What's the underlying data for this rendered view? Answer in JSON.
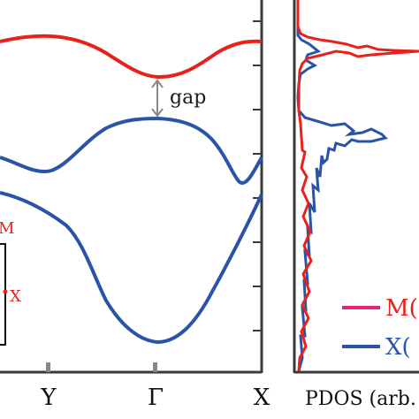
{
  "chart_data": [
    {
      "type": "line",
      "title": "",
      "xlabel": "",
      "ylabel": "",
      "x_ticks": [
        "Y",
        "Γ",
        "X"
      ],
      "annotations": [
        "gap"
      ],
      "inset_labels": [
        "M",
        "X"
      ],
      "x": [
        0,
        0.1,
        0.2,
        0.3,
        0.4,
        0.5,
        0.6,
        0.7,
        0.8,
        0.9,
        1.0
      ],
      "series": [
        {
          "color": "#e8211d",
          "values": [
            0.95,
            0.958,
            0.942,
            0.88,
            0.83,
            0.815,
            0.84,
            0.885,
            0.93,
            0.955,
            0.958
          ]
        },
        {
          "color": "#2a54a8",
          "values": [
            0.44,
            0.33,
            0.29,
            0.32,
            0.52,
            0.61,
            0.59,
            0.5,
            0.36,
            0.18,
            0.24
          ]
        },
        {
          "color": "#2a54a8",
          "values": [
            0.0,
            -0.11,
            -0.19,
            -0.24,
            -0.29,
            -0.4,
            -0.61,
            -0.79,
            -0.9,
            -0.75,
            -0.22
          ]
        }
      ]
    },
    {
      "type": "line",
      "xlabel": "PDOS (arb.",
      "legend": [
        "M(",
        "X("
      ],
      "legend_placement": "bottom-right",
      "series": [
        {
          "name": "M(",
          "color": "#e8211d",
          "peaks": [
            {
              "energy": 0.88,
              "height": 1.0
            }
          ]
        },
        {
          "name": "X(",
          "color": "#2a54a8",
          "peaks": [
            {
              "energy": 0.88,
              "height": 0.25
            },
            {
              "energy": 0.55,
              "height": 0.9
            }
          ]
        }
      ]
    }
  ],
  "colors": {
    "red": "#e8211d",
    "blue": "#2a54a8",
    "legend_pink": "#e8217a",
    "axis": "#3a3a3a",
    "tick": "#888888"
  }
}
